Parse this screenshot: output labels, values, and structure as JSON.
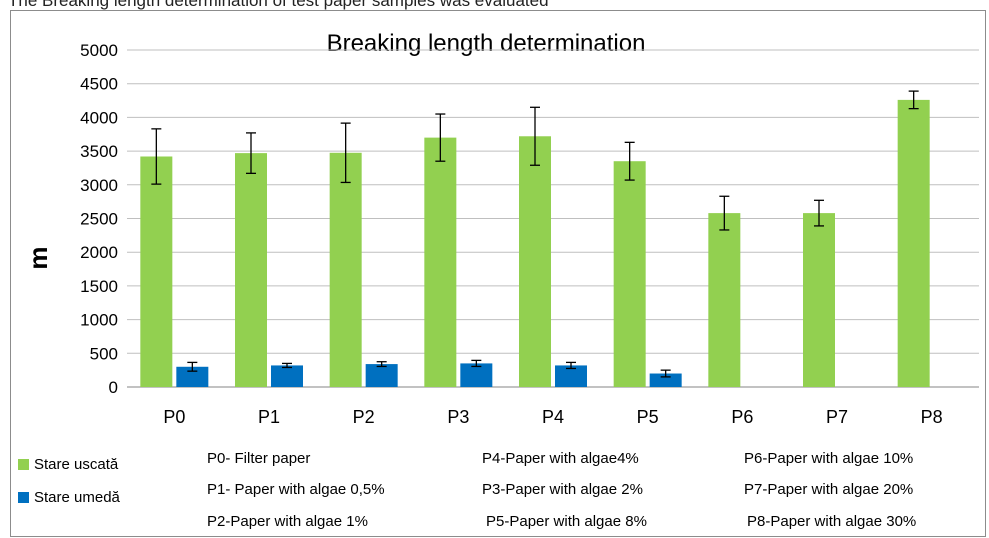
{
  "cropped_text": "The Breaking length determination of test paper samples was evaluated",
  "chart_data": {
    "type": "bar",
    "title": "Breaking length determination",
    "xlabel": "",
    "ylabel": "m",
    "ylim": [
      0,
      5000
    ],
    "yticks": [
      0,
      500,
      1000,
      1500,
      2000,
      2500,
      3000,
      3500,
      4000,
      4500,
      5000
    ],
    "grid": true,
    "legend_position": "bottom-left",
    "categories": [
      "P0",
      "P1",
      "P2",
      "P3",
      "P4",
      "P5",
      "P6",
      "P7",
      "P8"
    ],
    "series": [
      {
        "name": "Stare uscată",
        "color": "#92d050",
        "values": [
          3420,
          3470,
          3475,
          3700,
          3720,
          3350,
          2580,
          2580,
          4260
        ],
        "errors": [
          410,
          300,
          440,
          350,
          430,
          280,
          250,
          190,
          130
        ]
      },
      {
        "name": "Stare umedă",
        "color": "#0070c0",
        "values": [
          300,
          320,
          340,
          350,
          320,
          200,
          null,
          null,
          null
        ],
        "errors": [
          65,
          30,
          35,
          45,
          45,
          50,
          null,
          null,
          null
        ]
      }
    ]
  },
  "notes": [
    "P0- Filter paper",
    "P1- Paper with algae 0,5%",
    "P2-Paper with algae 1%",
    "P4-Paper with algae4%",
    "P3-Paper with algae 2%",
    "P5-Paper with algae 8%",
    "P6-Paper with algae 10%",
    "P7-Paper with algae 20%",
    "P8-Paper with algae 30%"
  ]
}
